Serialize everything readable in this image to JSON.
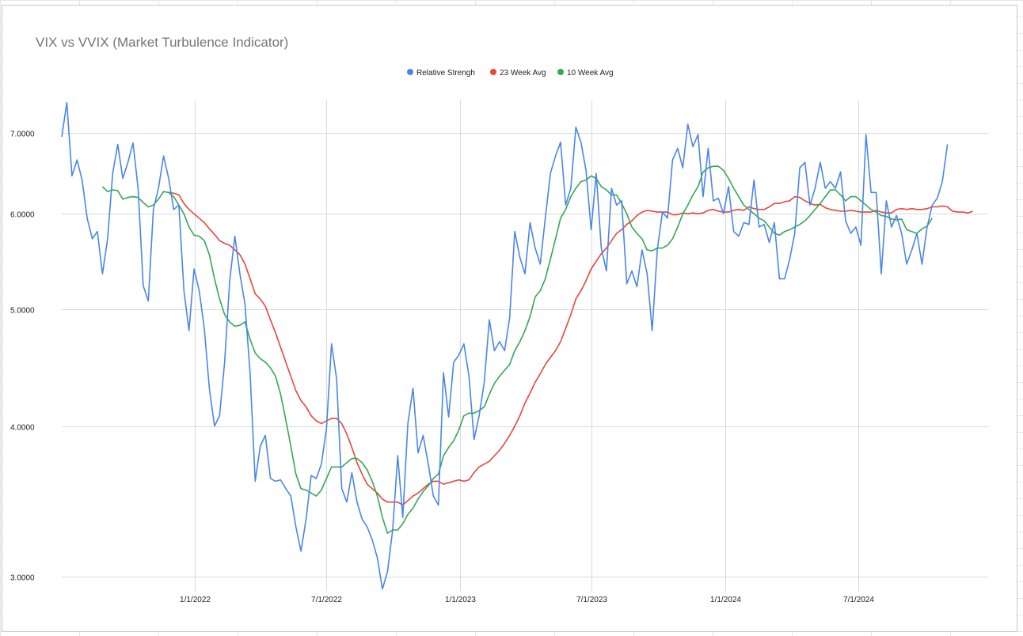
{
  "chart_data": {
    "type": "line",
    "title": "VIX vs VVIX (Market Turbulence Indicator)",
    "xlabel": "",
    "ylabel": "",
    "y_scale": "log",
    "ylim": [
      2.92,
      7.45
    ],
    "xlim": [
      "2021-07-02",
      "2024-12-27"
    ],
    "x_ticks": [
      "1/1/2022",
      "7/1/2022",
      "1/1/2023",
      "7/1/2023",
      "1/1/2024",
      "7/1/2024"
    ],
    "x_tick_dates": [
      "2022-01-01",
      "2022-07-01",
      "2023-01-01",
      "2023-07-01",
      "2024-01-01",
      "2024-07-01"
    ],
    "y_ticks": [
      "3.0000",
      "4.0000",
      "5.0000",
      "6.0000",
      "7.0000"
    ],
    "y_tick_values": [
      3,
      4,
      5,
      6,
      7
    ],
    "grid": true,
    "legend": "top-center",
    "start_date": "2021-07-02",
    "interval_days": 7,
    "series": [
      {
        "name": "Relative Strengh",
        "color": "#4a86e8",
        "values": [
          6.95,
          7.42,
          6.45,
          6.65,
          6.4,
          5.95,
          5.72,
          5.8,
          5.35,
          5.72,
          6.48,
          6.85,
          6.42,
          6.62,
          6.87,
          6.3,
          5.23,
          5.08,
          6.05,
          6.3,
          6.7,
          6.42,
          6.05,
          6.1,
          5.18,
          4.8,
          5.4,
          5.18,
          4.82,
          4.3,
          4.0,
          4.08,
          4.52,
          5.28,
          5.75,
          5.35,
          5.05,
          4.42,
          3.6,
          3.85,
          3.93,
          3.62,
          3.6,
          3.61,
          3.55,
          3.5,
          3.3,
          3.15,
          3.35,
          3.64,
          3.62,
          3.72,
          3.98,
          4.68,
          4.38,
          3.55,
          3.46,
          3.66,
          3.46,
          3.35,
          3.3,
          3.22,
          3.11,
          2.93,
          3.03,
          3.28,
          3.78,
          3.36,
          4.02,
          4.3,
          3.8,
          3.93,
          3.72,
          3.5,
          3.44,
          4.43,
          4.07,
          4.52,
          4.58,
          4.68,
          4.4,
          3.9,
          4.08,
          4.35,
          4.9,
          4.62,
          4.7,
          4.62,
          4.92,
          5.8,
          5.52,
          5.35,
          5.9,
          5.62,
          5.45,
          5.95,
          6.48,
          6.7,
          6.88,
          6.1,
          6.3,
          7.08,
          6.88,
          6.52,
          5.82,
          6.48,
          5.62,
          5.38,
          6.3,
          6.1,
          6.15,
          5.25,
          5.38,
          5.22,
          5.6,
          5.35,
          4.8,
          5.6,
          6.02,
          5.95,
          6.65,
          6.8,
          6.55,
          7.12,
          6.82,
          6.98,
          6.2,
          6.8,
          6.15,
          6.18,
          6.0,
          6.32,
          5.8,
          5.75,
          5.9,
          5.88,
          6.4,
          5.85,
          5.88,
          5.68,
          5.9,
          5.3,
          5.3,
          5.5,
          5.78,
          6.55,
          6.62,
          6.1,
          6.3,
          6.62,
          6.3,
          6.38,
          6.3,
          6.5,
          5.92,
          5.78,
          5.85,
          5.65,
          6.98,
          6.25,
          6.25,
          5.35,
          6.15,
          5.85,
          5.98,
          5.78,
          5.45,
          5.6,
          5.78,
          5.45,
          5.85,
          6.1,
          6.18,
          6.38,
          6.85
        ]
      },
      {
        "name": "23 Week Avg",
        "color": "#e8453c",
        "values": [
          null,
          null,
          null,
          null,
          null,
          null,
          null,
          null,
          null,
          null,
          null,
          null,
          null,
          null,
          null,
          null,
          null,
          null,
          null,
          null,
          null,
          6.25,
          6.24,
          6.22,
          6.12,
          6.05,
          6.0,
          5.95,
          5.9,
          5.83,
          5.77,
          5.7,
          5.67,
          5.65,
          5.6,
          5.55,
          5.45,
          5.3,
          5.15,
          5.1,
          5.03,
          4.9,
          4.78,
          4.65,
          4.52,
          4.4,
          4.28,
          4.2,
          4.15,
          4.08,
          4.04,
          4.02,
          4.04,
          4.06,
          4.06,
          4.02,
          3.94,
          3.84,
          3.73,
          3.65,
          3.58,
          3.55,
          3.52,
          3.48,
          3.46,
          3.46,
          3.46,
          3.44,
          3.47,
          3.5,
          3.52,
          3.55,
          3.58,
          3.6,
          3.6,
          3.58,
          3.59,
          3.6,
          3.61,
          3.6,
          3.61,
          3.66,
          3.7,
          3.72,
          3.74,
          3.78,
          3.82,
          3.87,
          3.93,
          4.0,
          4.08,
          4.18,
          4.26,
          4.35,
          4.42,
          4.5,
          4.56,
          4.62,
          4.7,
          4.82,
          4.95,
          5.1,
          5.18,
          5.28,
          5.4,
          5.48,
          5.56,
          5.62,
          5.7,
          5.78,
          5.82,
          5.88,
          5.92,
          5.98,
          6.02,
          6.04,
          6.03,
          6.02,
          6.02,
          6.02,
          5.99,
          5.99,
          6.01,
          6.0,
          6.01,
          6.0,
          6.01,
          6.04,
          6.05,
          6.03,
          6.02,
          6.02,
          6.04,
          6.05,
          6.04,
          6.08,
          6.06,
          6.05,
          6.05,
          6.08,
          6.12,
          6.12,
          6.14,
          6.15,
          6.2,
          6.19,
          6.15,
          6.12,
          6.1,
          6.11,
          6.07,
          6.05,
          6.04,
          6.03,
          6.03,
          6.04,
          6.03,
          6.02,
          6.02,
          6.02,
          6.04,
          6.02,
          6.01,
          6.01,
          6.05,
          6.06,
          6.05,
          6.06,
          6.05,
          6.05,
          6.06,
          6.08,
          6.08,
          6.09,
          6.08,
          6.03,
          6.02,
          6.02,
          6.01,
          6.03
        ]
      },
      {
        "name": "10 Week Avg",
        "color": "#34a853",
        "values": [
          null,
          null,
          null,
          null,
          null,
          null,
          null,
          null,
          6.32,
          6.26,
          6.28,
          6.27,
          6.17,
          6.19,
          6.2,
          6.19,
          6.13,
          6.08,
          6.1,
          6.17,
          6.26,
          6.25,
          6.2,
          6.1,
          6.0,
          5.85,
          5.76,
          5.75,
          5.7,
          5.55,
          5.3,
          5.1,
          4.95,
          4.88,
          4.84,
          4.85,
          4.88,
          4.72,
          4.6,
          4.55,
          4.52,
          4.47,
          4.4,
          4.25,
          4.05,
          3.85,
          3.65,
          3.55,
          3.54,
          3.52,
          3.5,
          3.54,
          3.62,
          3.7,
          3.7,
          3.7,
          3.73,
          3.76,
          3.76,
          3.73,
          3.68,
          3.6,
          3.5,
          3.36,
          3.26,
          3.28,
          3.28,
          3.32,
          3.38,
          3.42,
          3.48,
          3.53,
          3.57,
          3.62,
          3.65,
          3.78,
          3.84,
          3.89,
          3.97,
          4.08,
          4.1,
          4.1,
          4.12,
          4.15,
          4.25,
          4.34,
          4.4,
          4.45,
          4.5,
          4.62,
          4.7,
          4.8,
          4.93,
          5.12,
          5.18,
          5.3,
          5.5,
          5.72,
          5.95,
          6.05,
          6.2,
          6.3,
          6.38,
          6.4,
          6.45,
          6.42,
          6.32,
          6.28,
          6.22,
          6.22,
          6.12,
          6.0,
          5.85,
          5.78,
          5.72,
          5.6,
          5.59,
          5.62,
          5.62,
          5.65,
          5.72,
          5.85,
          6.0,
          6.1,
          6.22,
          6.32,
          6.5,
          6.55,
          6.57,
          6.57,
          6.52,
          6.42,
          6.3,
          6.2,
          6.1,
          6.05,
          6.0,
          5.95,
          5.92,
          5.85,
          5.78,
          5.76,
          5.8,
          5.82,
          5.85,
          5.88,
          5.92,
          5.98,
          6.05,
          6.12,
          6.2,
          6.28,
          6.28,
          6.22,
          6.15,
          6.2,
          6.2,
          6.15,
          6.1,
          6.05,
          6.02,
          5.98,
          5.97,
          5.94,
          5.93,
          5.94,
          5.82,
          5.8,
          5.78,
          5.83,
          5.86,
          5.95
        ]
      }
    ]
  }
}
